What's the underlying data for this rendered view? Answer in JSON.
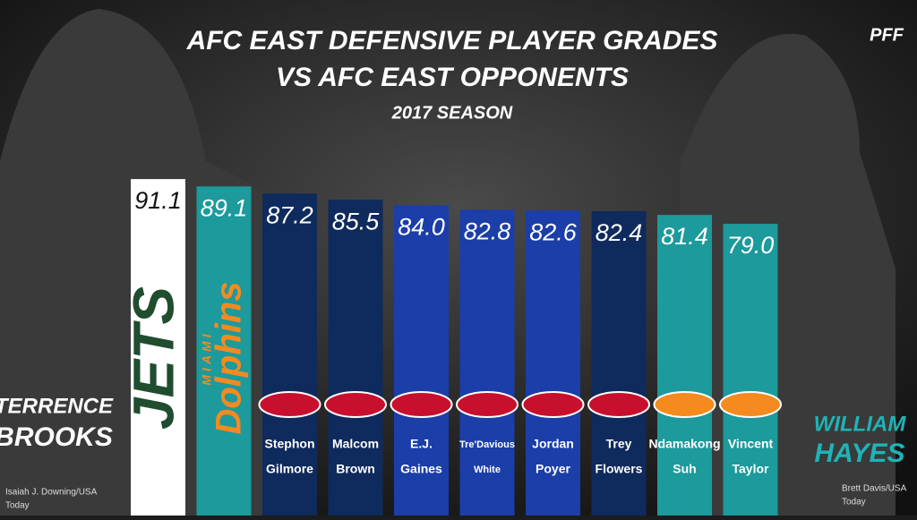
{
  "chart_data": {
    "type": "bar",
    "title": [
      "AFC EAST DEFENSIVE PLAYER GRADES",
      "VS AFC EAST OPPONENTS"
    ],
    "subtitle": "2017 SEASON",
    "brand": "PFF",
    "categories": [
      null,
      null,
      [
        "Stephon",
        "Gilmore"
      ],
      [
        "Malcom",
        "Brown"
      ],
      [
        "E.J.",
        "Gaines"
      ],
      [
        "Tre'Davious",
        "White"
      ],
      [
        "Jordan",
        "Poyer"
      ],
      [
        "Trey",
        "Flowers"
      ],
      [
        "Ndamakong",
        "Suh"
      ],
      [
        "Vincent",
        "Taylor"
      ]
    ],
    "values": [
      91.1,
      89.1,
      87.2,
      85.5,
      84.0,
      82.8,
      82.6,
      82.4,
      81.4,
      79.0
    ],
    "value_labels": [
      "91.1",
      "89.1",
      "87.2",
      "85.5",
      "84.0",
      "82.8",
      "82.6",
      "82.4",
      "81.4",
      "79.0"
    ],
    "colors": [
      "#ffffff",
      "#1c9a9c",
      "#0f2a5c",
      "#0f2a5c",
      "#1b3ea8",
      "#1b3ea8",
      "#1b3ea8",
      "#0f2a5c",
      "#1c9a9c",
      "#1c9a9c"
    ],
    "wordmarks": [
      [
        "JETS"
      ],
      [
        "MIAMI",
        "Dolphins"
      ]
    ],
    "ylim": [
      0,
      95
    ],
    "featured_players": [
      [
        "TERRENCE",
        "BROOKS"
      ],
      [
        "WILLIAM",
        "HAYES"
      ]
    ],
    "credits": [
      [
        "Isaiah J. Downing/USA",
        "Today"
      ],
      [
        "Brett Davis/USA",
        "Today"
      ]
    ]
  }
}
